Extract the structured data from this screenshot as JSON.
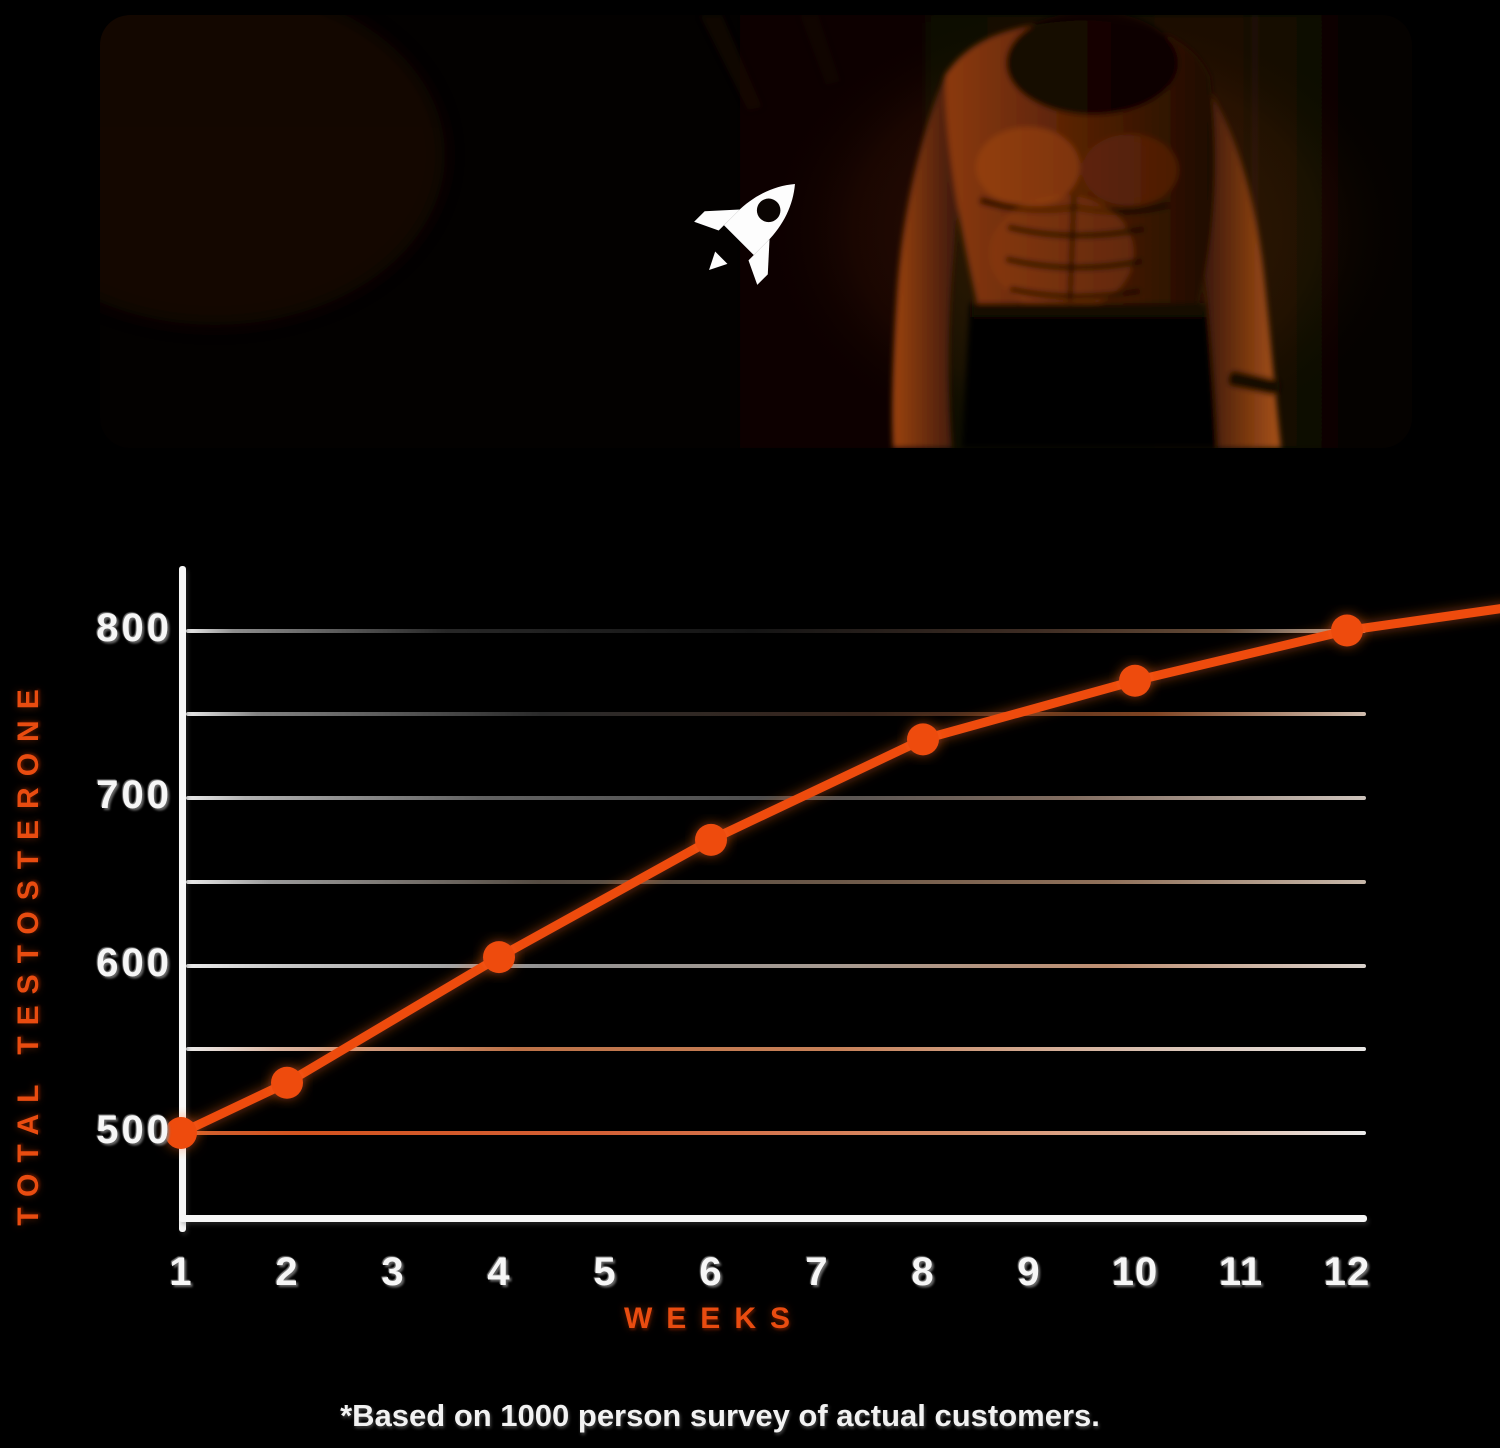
{
  "page": {
    "background": "#000000",
    "accent": "#ee4b0c"
  },
  "hero": {
    "rocket_icon_color": "#ffffff"
  },
  "chart_data": {
    "type": "line",
    "title": "",
    "x": [
      1,
      2,
      4,
      6,
      8,
      10,
      12
    ],
    "series": [
      {
        "name": "Total Testosterone",
        "values": [
          500,
          530,
          605,
          675,
          735,
          770,
          800
        ]
      }
    ],
    "xlabel": "WEEKS",
    "ylabel": "TOTAL TESTOSTERONE",
    "x_ticks": [
      1,
      2,
      3,
      4,
      5,
      6,
      7,
      8,
      9,
      10,
      11,
      12
    ],
    "y_ticks": [
      800,
      700,
      600,
      500
    ],
    "gridline_values": [
      500,
      550,
      600,
      650,
      700,
      750,
      800
    ],
    "ylim": [
      450,
      840
    ],
    "xlim": [
      1,
      13.5
    ],
    "grid": true,
    "legend": false,
    "line_color": "#ee4b0c",
    "point_color": "#ee4b0c",
    "line_extends_past_last_point": true
  },
  "caption": {
    "text": "*Based on 1000 person survey of actual customers."
  }
}
